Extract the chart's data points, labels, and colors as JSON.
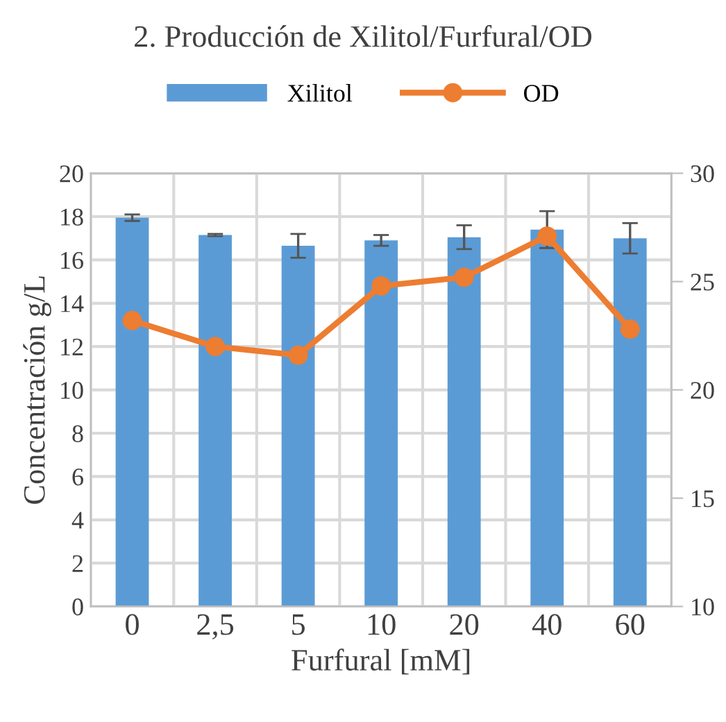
{
  "chart_data": {
    "type": "bar",
    "title": "2. Producción de Xilitol/Furfural/OD",
    "xlabel": "Furfural [mM]",
    "ylabel": "Concentración g/L",
    "categories": [
      "0",
      "2,5",
      "5",
      "10",
      "20",
      "40",
      "60"
    ],
    "series": [
      {
        "name": "Xilitol",
        "color": "#5b9bd5",
        "values": [
          17.95,
          17.15,
          16.65,
          16.9,
          17.05,
          17.4,
          17.0
        ],
        "errors": [
          0.15,
          0.05,
          0.55,
          0.25,
          0.55,
          0.85,
          0.7
        ]
      },
      {
        "name": "OD",
        "type": "line",
        "axis": "y2",
        "color": "#ed7d31",
        "marker": "circle",
        "line_style": "solid",
        "values": [
          23.2,
          22.0,
          21.6,
          24.8,
          25.2,
          27.1,
          22.8
        ]
      }
    ],
    "ylim": [
      0,
      20
    ],
    "yticks": [
      0,
      2,
      4,
      6,
      8,
      10,
      12,
      14,
      16,
      18,
      20
    ],
    "y2lim": [
      10,
      30
    ],
    "y2ticks": [
      10,
      15,
      20,
      25,
      30
    ],
    "grid": true,
    "legend": "top"
  }
}
